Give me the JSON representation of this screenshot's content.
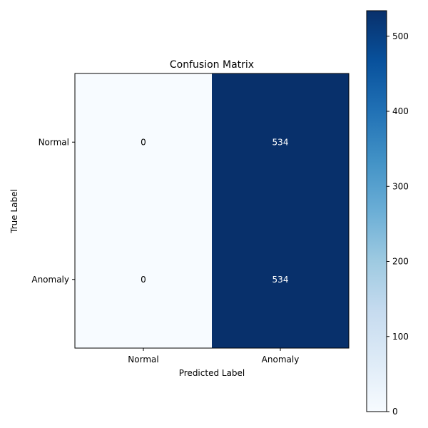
{
  "chart_data": {
    "type": "heatmap",
    "title": "Confusion Matrix",
    "xlabel": "Predicted Label",
    "ylabel": "True Label",
    "x_categories": [
      "Normal",
      "Anomaly"
    ],
    "y_categories": [
      "Normal",
      "Anomaly"
    ],
    "values": [
      [
        0,
        534
      ],
      [
        0,
        534
      ]
    ],
    "colormap": "Blues",
    "colormap_low": "#f7fbff",
    "colormap_high": "#08306b",
    "colorbar": {
      "range": [
        0,
        534
      ],
      "ticks": [
        0,
        100,
        200,
        300,
        400,
        500
      ]
    },
    "cell_text_dark": "#000000",
    "cell_text_light": "#ffffff",
    "grid": false
  }
}
